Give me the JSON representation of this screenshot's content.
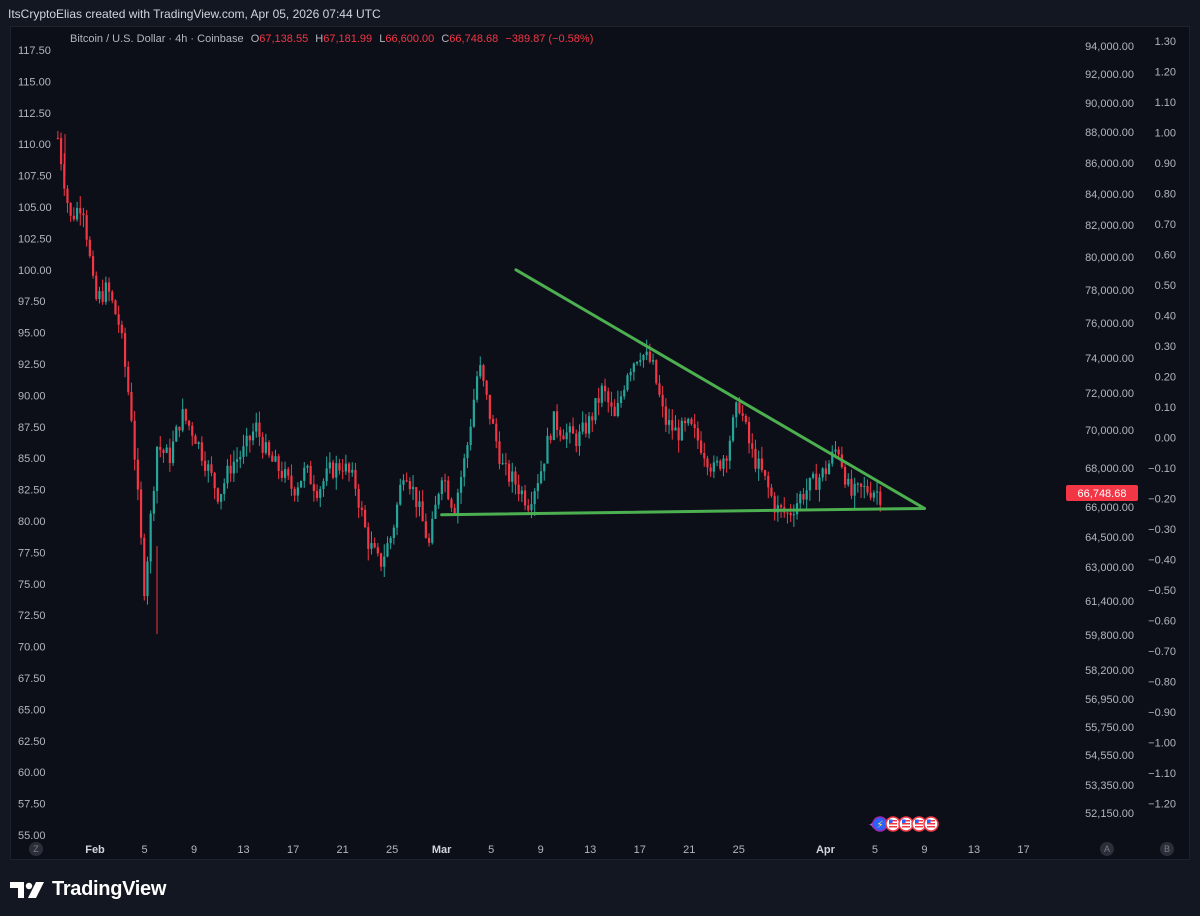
{
  "header": {
    "attribution": "ItsCryptoElias created with TradingView.com, Apr 05, 2026 07:44 UTC"
  },
  "legend": {
    "symbol": "Bitcoin / U.S. Dollar · 4h · Coinbase",
    "open_label": "O",
    "open": "67,138.55",
    "high_label": "H",
    "high": "67,181.99",
    "low_label": "L",
    "low": "66,600.00",
    "close_label": "C",
    "close": "66,748.68",
    "change": "−389.87 (−0.58%)"
  },
  "brand": {
    "name": "TradingView"
  },
  "axis_buttons": {
    "left": "Z",
    "right_a": "A",
    "right_b": "B"
  },
  "colors": {
    "background": "#0d0f18",
    "up_candle": "#26a69a",
    "down_candle": "#f23645",
    "trendline": "#4caf50",
    "last_price_tag": "#f23645"
  },
  "chart_data": {
    "type": "candlestick",
    "symbol": "BTCUSD",
    "interval": "4h",
    "exchange": "Coinbase",
    "last_price": "66,748.68",
    "x_tick_labels": [
      "Feb",
      "5",
      "9",
      "13",
      "17",
      "21",
      "25",
      "Mar",
      "5",
      "9",
      "13",
      "17",
      "21",
      "25",
      "Apr",
      "5",
      "9",
      "13",
      "17"
    ],
    "left_axis_ticks": [
      "117.50",
      "115.00",
      "112.50",
      "110.00",
      "107.50",
      "105.00",
      "102.50",
      "100.00",
      "97.50",
      "95.00",
      "92.50",
      "90.00",
      "87.50",
      "85.00",
      "82.50",
      "80.00",
      "77.50",
      "75.00",
      "72.50",
      "70.00",
      "67.50",
      "65.00",
      "62.50",
      "60.00",
      "57.50",
      "55.00"
    ],
    "right_price_ticks": [
      "94,000.00",
      "92,000.00",
      "90,000.00",
      "88,000.00",
      "86,000.00",
      "84,000.00",
      "82,000.00",
      "80,000.00",
      "78,000.00",
      "76,000.00",
      "74,000.00",
      "72,000.00",
      "70,000.00",
      "68,000.00",
      "66,000.00",
      "64,500.00",
      "63,000.00",
      "61,400.00",
      "59,800.00",
      "58,200.00",
      "56,950.00",
      "55,750.00",
      "54,550.00",
      "53,350.00",
      "52,150.00"
    ],
    "right_pct_ticks": [
      "1.30",
      "1.20",
      "1.10",
      "1.00",
      "0.90",
      "0.80",
      "0.70",
      "0.60",
      "0.50",
      "0.40",
      "0.30",
      "0.20",
      "0.10",
      "0.00",
      "−0.10",
      "−0.20",
      "−0.30",
      "−0.40",
      "−0.50",
      "−0.60",
      "−0.70",
      "−0.80",
      "−0.90",
      "−1.00",
      "−1.10",
      "−1.20"
    ],
    "price_path": [
      [
        "Jan 29",
        110.5
      ],
      [
        "Jan 30",
        104.0
      ],
      [
        "Jan 31",
        105.5
      ],
      [
        "Feb 1",
        97.5
      ],
      [
        "Feb 2",
        98.5
      ],
      [
        "Feb 3",
        95.5
      ],
      [
        "Feb 4",
        88.0
      ],
      [
        "Feb 5",
        74.5
      ],
      [
        "Feb 6",
        86.0
      ],
      [
        "Feb 7",
        85.0
      ],
      [
        "Feb 8",
        88.5
      ],
      [
        "Feb 9",
        87.0
      ],
      [
        "Feb 10",
        84.5
      ],
      [
        "Feb 11",
        82.0
      ],
      [
        "Feb 12",
        84.5
      ],
      [
        "Feb 13",
        85.5
      ],
      [
        "Feb 14",
        87.5
      ],
      [
        "Feb 15",
        85.0
      ],
      [
        "Feb 16",
        84.0
      ],
      [
        "Feb 17",
        82.5
      ],
      [
        "Feb 18",
        84.0
      ],
      [
        "Feb 19",
        82.5
      ],
      [
        "Feb 20",
        84.0
      ],
      [
        "Feb 21",
        84.5
      ],
      [
        "Feb 22",
        83.0
      ],
      [
        "Feb 23",
        78.5
      ],
      [
        "Feb 24",
        76.5
      ],
      [
        "Feb 25",
        79.0
      ],
      [
        "Feb 26",
        84.5
      ],
      [
        "Feb 27",
        81.5
      ],
      [
        "Feb 28",
        78.0
      ],
      [
        "Mar 1",
        84.0
      ],
      [
        "Mar 2",
        81.0
      ],
      [
        "Mar 3",
        85.5
      ],
      [
        "Mar 4",
        92.5
      ],
      [
        "Mar 5",
        88.0
      ],
      [
        "Mar 6",
        84.0
      ],
      [
        "Mar 7",
        83.0
      ],
      [
        "Mar 8",
        81.5
      ],
      [
        "Mar 9",
        84.0
      ],
      [
        "Mar 10",
        88.0
      ],
      [
        "Mar 11",
        87.0
      ],
      [
        "Mar 12",
        86.5
      ],
      [
        "Mar 13",
        88.0
      ],
      [
        "Mar 14",
        90.5
      ],
      [
        "Mar 15",
        88.0
      ],
      [
        "Mar 16",
        92.0
      ],
      [
        "Mar 17",
        93.5
      ],
      [
        "Mar 18",
        92.5
      ],
      [
        "Mar 19",
        88.0
      ],
      [
        "Mar 20",
        87.0
      ],
      [
        "Mar 21",
        87.5
      ],
      [
        "Mar 22",
        86.0
      ],
      [
        "Mar 23",
        84.0
      ],
      [
        "Mar 24",
        85.5
      ],
      [
        "Mar 25",
        89.5
      ],
      [
        "Mar 26",
        85.5
      ],
      [
        "Mar 27",
        83.5
      ],
      [
        "Mar 28",
        81.0
      ],
      [
        "Mar 29",
        80.5
      ],
      [
        "Mar 30",
        82.0
      ],
      [
        "Mar 31",
        83.0
      ],
      [
        "Apr 1",
        84.0
      ],
      [
        "Apr 2",
        86.0
      ],
      [
        "Apr 3",
        82.0
      ],
      [
        "Apr 4",
        82.5
      ],
      [
        "Apr 5",
        82.5
      ],
      [
        "Apr 5b",
        82.0
      ]
    ],
    "trendlines": [
      {
        "name": "descending resistance",
        "color": "#4caf50",
        "from": [
          "Mar 7",
          100.0
        ],
        "to": [
          "Apr 9",
          81.0
        ]
      },
      {
        "name": "horizontal support",
        "color": "#4caf50",
        "from": [
          "Mar 1",
          80.5
        ],
        "to": [
          "Apr 9",
          81.0
        ]
      }
    ],
    "pattern": "descending triangle",
    "grid": false
  }
}
